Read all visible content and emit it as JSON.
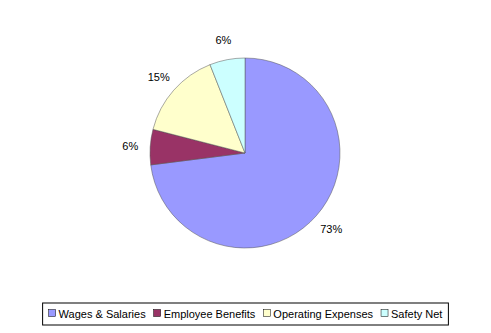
{
  "chart_data": {
    "type": "pie",
    "categories": [
      "Wages & Salaries",
      "Employee Benefits",
      "Operating Expenses",
      "Safety Net"
    ],
    "values": [
      73,
      6,
      15,
      6
    ],
    "value_labels": [
      "73%",
      "6%",
      "15%",
      "6%"
    ],
    "colors": [
      "#9999ff",
      "#993366",
      "#ffffcc",
      "#ccffff"
    ],
    "data_labels": true,
    "legend": "bottom"
  }
}
